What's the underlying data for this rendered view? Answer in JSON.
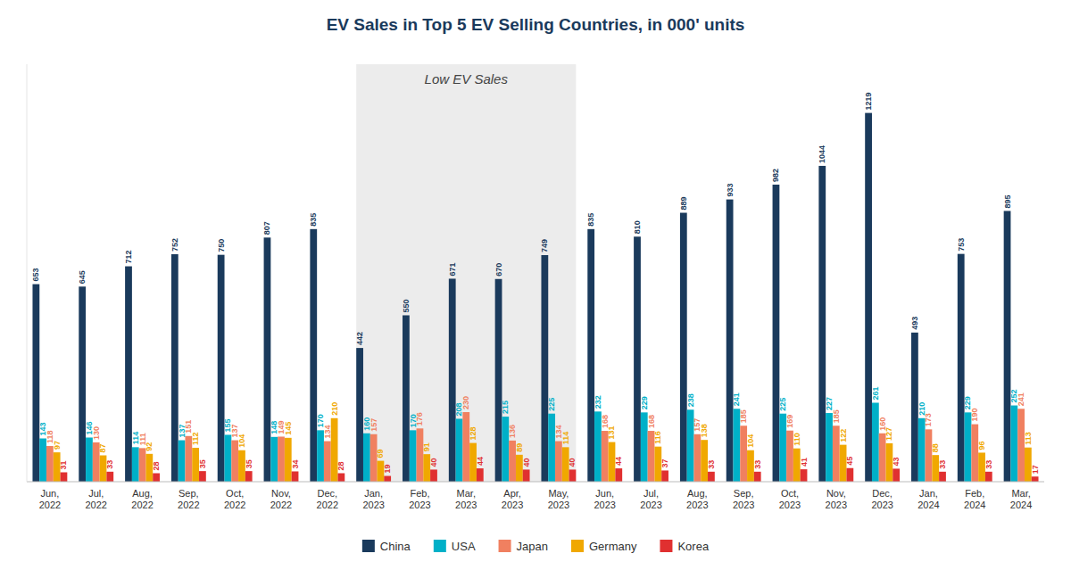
{
  "chart_data": {
    "type": "bar",
    "title": "EV Sales in Top 5 EV Selling Countries, in 000' units",
    "categories": [
      "Jun,\n2022",
      "Jul,\n2022",
      "Aug,\n2022",
      "Sep,\n2022",
      "Oct,\n2022",
      "Nov,\n2022",
      "Dec,\n2022",
      "Jan,\n2023",
      "Feb,\n2023",
      "Mar,\n2023",
      "Apr,\n2023",
      "May,\n2023",
      "Jun,\n2023",
      "Jul,\n2023",
      "Aug,\n2023",
      "Sep,\n2023",
      "Oct,\n2023",
      "Nov,\n2023",
      "Dec,\n2023",
      "Jan,\n2024",
      "Feb,\n2024",
      "Mar,\n2024"
    ],
    "series": [
      {
        "name": "China",
        "color": "#1a3a5c",
        "values": [
          653,
          645,
          712,
          752,
          750,
          807,
          835,
          442,
          550,
          671,
          670,
          749,
          835,
          810,
          889,
          933,
          982,
          1044,
          1219,
          493,
          753,
          895
        ]
      },
      {
        "name": "USA",
        "color": "#00b0c8",
        "values": [
          143,
          146,
          114,
          137,
          155,
          148,
          170,
          160,
          170,
          208,
          215,
          225,
          232,
          229,
          238,
          241,
          225,
          227,
          261,
          210,
          229,
          252
        ]
      },
      {
        "name": "Japan",
        "color": "#f08060",
        "values": [
          118,
          130,
          111,
          151,
          137,
          149,
          134,
          157,
          176,
          230,
          136,
          134,
          168,
          168,
          157,
          185,
          169,
          185,
          160,
          173,
          190,
          241
        ]
      },
      {
        "name": "Germany",
        "color": "#f0a800",
        "values": [
          97,
          87,
          92,
          112,
          104,
          145,
          210,
          69,
          91,
          128,
          89,
          114,
          131,
          116,
          138,
          104,
          110,
          122,
          127,
          88,
          96,
          113
        ]
      },
      {
        "name": "Korea",
        "color": "#e03030",
        "values": [
          31,
          33,
          28,
          35,
          35,
          34,
          28,
          19,
          40,
          44,
          40,
          40,
          44,
          37,
          33,
          33,
          41,
          45,
          43,
          33,
          33,
          17
        ]
      }
    ],
    "ylim": [
      0,
      1380
    ],
    "tick_labels": "x",
    "grid": false,
    "data_labels": true,
    "legend": "bottom",
    "annotations": [
      {
        "text": "Low EV Sales",
        "x_start": "Jan,\n2023",
        "x_end": "May,\n2023"
      }
    ]
  }
}
